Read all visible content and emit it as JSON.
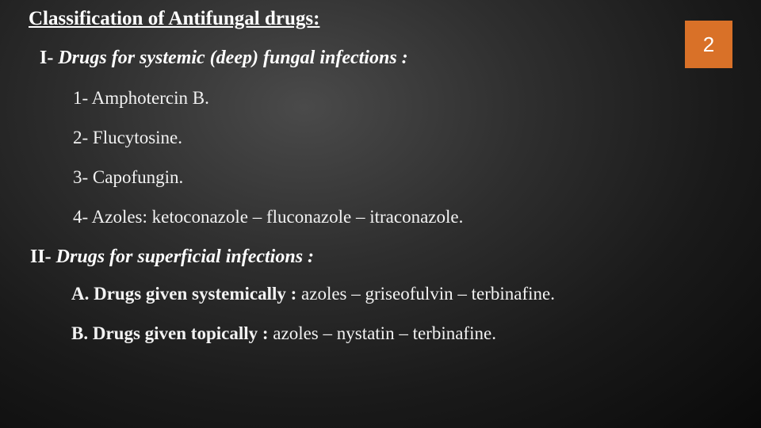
{
  "colors": {
    "badge_bg": "#d97128",
    "text": "#f5f5f5",
    "bg_center": "#4a4a4a",
    "bg_edge": "#0a0a0a"
  },
  "typography": {
    "title_fontsize": 25,
    "heading_fontsize": 24,
    "body_fontsize": 23,
    "badge_fontsize": 26,
    "font_family": "Georgia, Times New Roman, serif"
  },
  "page_number": "2",
  "title": "Classification of Antifungal drugs:",
  "section1": {
    "roman": "I-",
    "heading": "Drugs for systemic (deep) fungal infections :",
    "items": [
      "1- Amphotercin B.",
      "2- Flucytosine.",
      "3- Capofungin.",
      "4- Azoles: ketoconazole – fluconazole – itraconazole."
    ]
  },
  "section2": {
    "roman": "II-",
    "heading": "Drugs for superficial infections :",
    "subsections": [
      {
        "label": "A. Drugs given systemically :",
        "rest": " azoles – griseofulvin – terbinafine."
      },
      {
        "label": "B. Drugs given topically :",
        "rest": " azoles – nystatin – terbinafine."
      }
    ]
  }
}
